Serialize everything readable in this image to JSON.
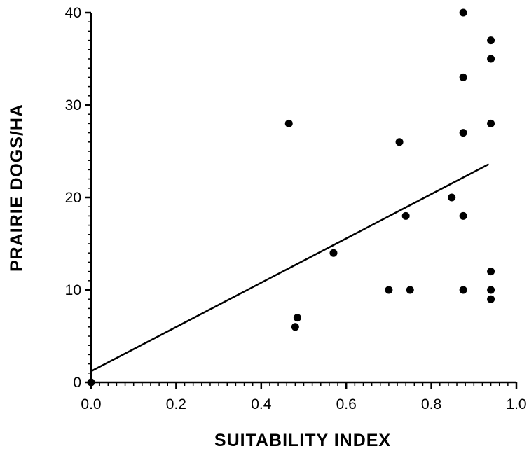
{
  "chart_data": {
    "type": "scatter",
    "title": "",
    "xlabel": "SUITABILITY INDEX",
    "ylabel": "PRAIRIE DOGS/HA",
    "xlim": [
      0.0,
      1.0
    ],
    "ylim": [
      0,
      40
    ],
    "x_ticks": [
      "0.0",
      "0.2",
      "0.4",
      "0.6",
      "0.8",
      "1.0"
    ],
    "y_ticks": [
      "0",
      "10",
      "20",
      "30",
      "40"
    ],
    "grid": false,
    "points": [
      {
        "x": 0.0,
        "y": 0
      },
      {
        "x": 0.465,
        "y": 28
      },
      {
        "x": 0.48,
        "y": 6
      },
      {
        "x": 0.485,
        "y": 7
      },
      {
        "x": 0.57,
        "y": 14
      },
      {
        "x": 0.7,
        "y": 10
      },
      {
        "x": 0.725,
        "y": 26
      },
      {
        "x": 0.74,
        "y": 18
      },
      {
        "x": 0.75,
        "y": 10
      },
      {
        "x": 0.848,
        "y": 20
      },
      {
        "x": 0.875,
        "y": 40
      },
      {
        "x": 0.875,
        "y": 33
      },
      {
        "x": 0.875,
        "y": 27
      },
      {
        "x": 0.875,
        "y": 18
      },
      {
        "x": 0.875,
        "y": 10
      },
      {
        "x": 0.94,
        "y": 37
      },
      {
        "x": 0.94,
        "y": 35
      },
      {
        "x": 0.94,
        "y": 28
      },
      {
        "x": 0.94,
        "y": 12
      },
      {
        "x": 0.94,
        "y": 10
      },
      {
        "x": 0.94,
        "y": 9
      }
    ],
    "regression_line": {
      "x": [
        0.0,
        0.935
      ],
      "y": [
        1.2,
        23.6
      ]
    }
  }
}
